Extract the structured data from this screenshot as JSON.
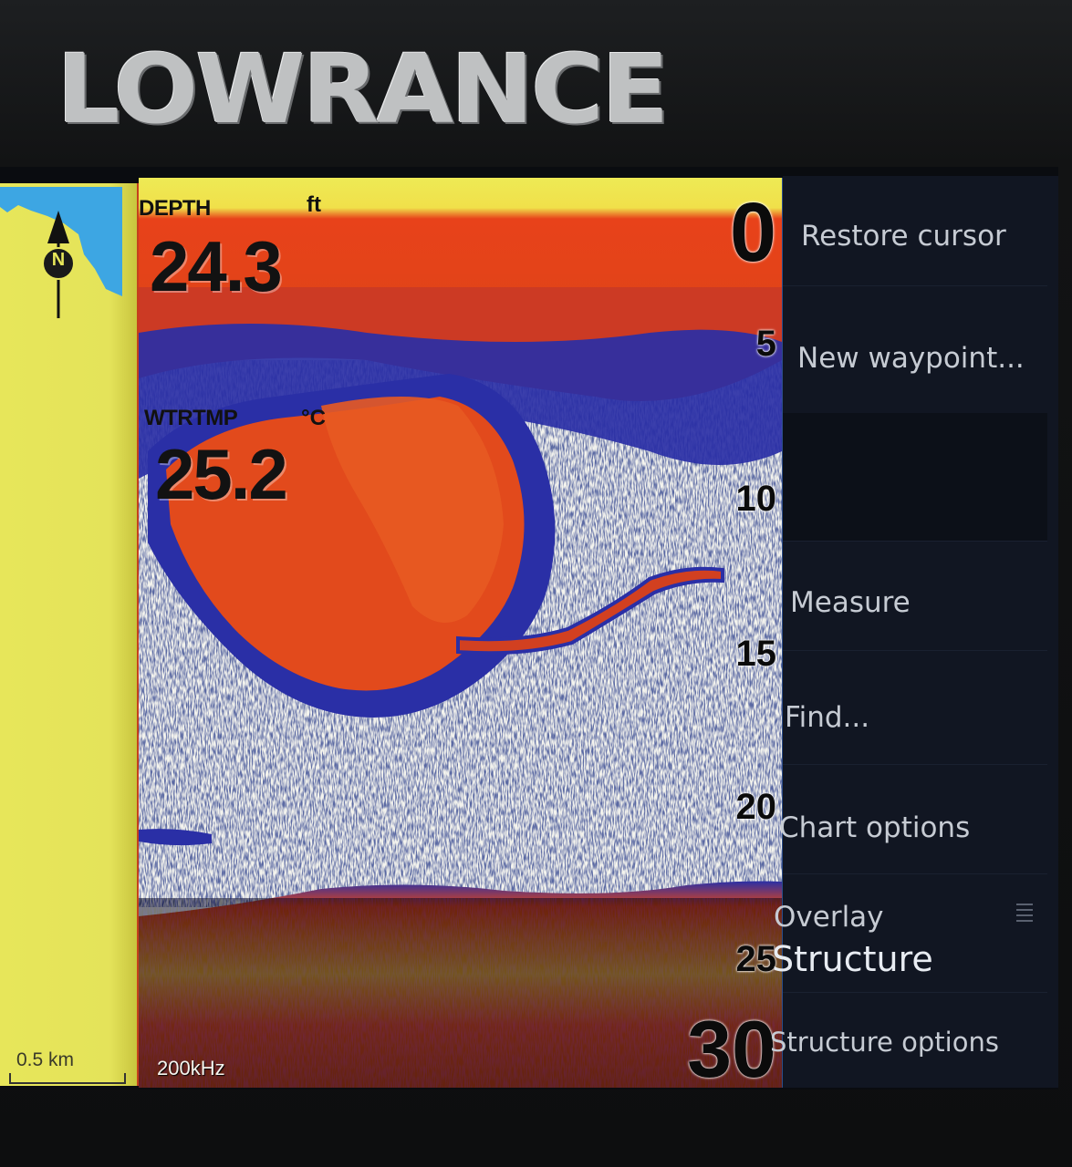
{
  "device": {
    "brand": "LOWRANCE"
  },
  "chart": {
    "scale_label": "0.5 km",
    "north_label": "N"
  },
  "sonar": {
    "depth": {
      "label": "DEPTH",
      "unit": "ft",
      "value": "24.3"
    },
    "water_temp": {
      "label": "WTRTMP",
      "unit": "°C",
      "value": "25.2"
    },
    "depth_scale": [
      "0",
      "5",
      "10",
      "15",
      "20",
      "25",
      "30"
    ],
    "frequency": "200kHz"
  },
  "menu": {
    "items": [
      {
        "label": "Restore cursor"
      },
      {
        "label": "New waypoint..."
      },
      {
        "label": "Measure"
      },
      {
        "label": "Find..."
      },
      {
        "label": "Chart options"
      },
      {
        "label": "Overlay",
        "value": "Structure"
      },
      {
        "label": "Structure options"
      }
    ]
  },
  "colors": {
    "sonar_strong": "#e8421a",
    "sonar_medium": "#1e2ea8",
    "sonar_surface": "#e9e84a",
    "map_land": "#e7e65a",
    "map_water": "#3da6e3",
    "menu_bg": "#111622"
  }
}
